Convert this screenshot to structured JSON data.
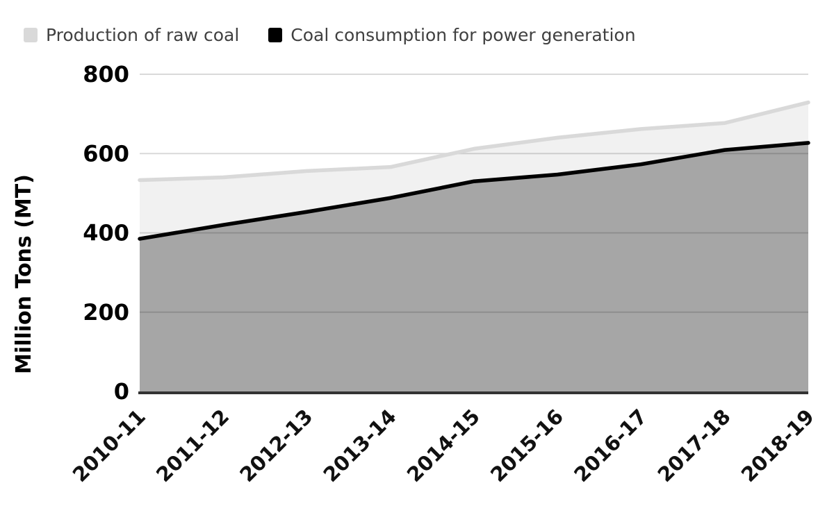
{
  "legend": {
    "items": [
      {
        "label": "Production of raw coal",
        "swatch_color": "#d9d9d9"
      },
      {
        "label": "Coal consumption for power generation",
        "swatch_color": "#000000"
      }
    ]
  },
  "chart_data": {
    "type": "area",
    "title": "",
    "xlabel": "",
    "ylabel": "Million Tons (MT)",
    "categories": [
      "2010-11",
      "2011-12",
      "2012-13",
      "2013-14",
      "2014-15",
      "2015-16",
      "2016-17",
      "2017-18",
      "2018-19"
    ],
    "series": [
      {
        "name": "Production of raw coal",
        "values": [
          533,
          540,
          556,
          566,
          612,
          640,
          662,
          677,
          729
        ],
        "color": "#f2f2f2",
        "fill": "rgba(0,0,0,0.055)",
        "line_color": "#d9d9d9"
      },
      {
        "name": "Coal consumption for power generation",
        "values": [
          385,
          420,
          453,
          488,
          530,
          547,
          573,
          609,
          627
        ],
        "color": "#a6a6a6",
        "fill": "rgba(0,0,0,0.31)",
        "line_color": "#000000"
      }
    ],
    "ylim": [
      0,
      800
    ],
    "yticks": [
      0,
      200,
      400,
      600,
      800
    ],
    "grid": true,
    "gridline_color": "#d9d9d9",
    "axis_line_color": "#333333",
    "legend_position": "top-left"
  }
}
